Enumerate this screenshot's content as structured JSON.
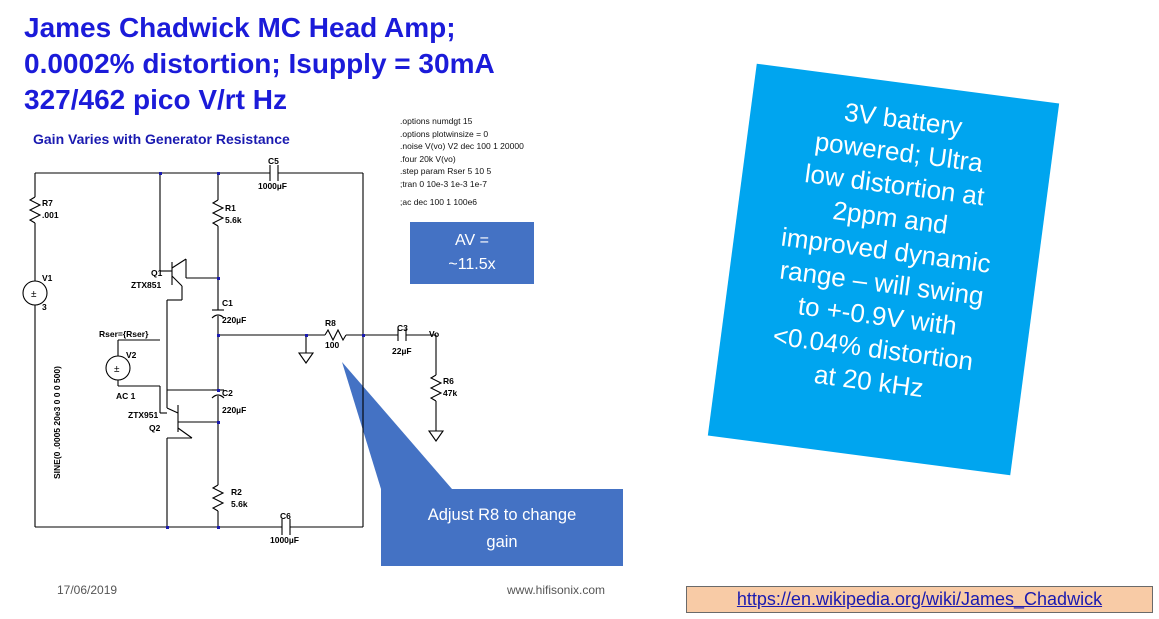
{
  "title": {
    "line1": "James Chadwick MC Head Amp;",
    "line2": "0.0002% distortion;  Isupply = 30mA",
    "line3": "327/462 pico V/rt Hz"
  },
  "schematic": {
    "heading": "Gain Varies with Generator Resistance",
    "components": {
      "c5_name": "C5",
      "c5_value": "1000µF",
      "r7_name": "R7",
      "r7_value": ".001",
      "r1_name": "R1",
      "r1_value": "5.6k",
      "v1_name": "V1",
      "v1_value": "3",
      "q1_name": "Q1",
      "q1_model": "ZTX851",
      "c1_name": "C1",
      "c1_value": "220µF",
      "rser_label": "Rser={Rser}",
      "r8_name": "R8",
      "r8_value": "100",
      "c3_name": "C3",
      "c3_value": "22µF",
      "vo_label": "Vo",
      "v2_name": "V2",
      "v2_ac": "AC 1",
      "c2_name": "C2",
      "c2_value": "220µF",
      "q2_model": "ZTX951",
      "q2_name": "Q2",
      "r6_name": "R6",
      "r6_value": "47k",
      "sine_label": "SINE(0 .0005 20e3 0 0 0 500)",
      "r2_name": "R2",
      "r2_value": "5.6k",
      "c6_name": "C6",
      "c6_value": "1000µF"
    },
    "spice_lines": [
      ".options numdgt 15",
      ".options plotwinsize = 0",
      ".noise V(vo) V2 dec 100 1 20000",
      ".four 20k V(vo)",
      ".step param Rser 5 10 5",
      ";tran 0 10e-3 1e-3 1e-7",
      ";ac dec 100 1 100e6"
    ]
  },
  "av_box": {
    "line1": "AV =",
    "line2": "~11.5x"
  },
  "callout": {
    "line1": "Adjust R8 to change",
    "line2": "gain"
  },
  "battery_box": {
    "lines": [
      "3V battery",
      "powered;  Ultra",
      "low distortion at",
      "2ppm and",
      "improved dynamic",
      "range – will swing",
      "to +-0.9V with",
      "<0.04% distortion",
      "at 20 kHz"
    ]
  },
  "footer": {
    "date": "17/06/2019",
    "site": "www.hifisonix.com"
  },
  "link": {
    "text": "https://en.wikipedia.org/wiki/James_Chadwick"
  },
  "colors": {
    "title": "#1b1bd9",
    "av_box": "#4472c4",
    "callout": "#4472c4",
    "battery_box": "#00a5ef",
    "link_bg": "#f8cba6",
    "heading": "#1a1ab0"
  }
}
